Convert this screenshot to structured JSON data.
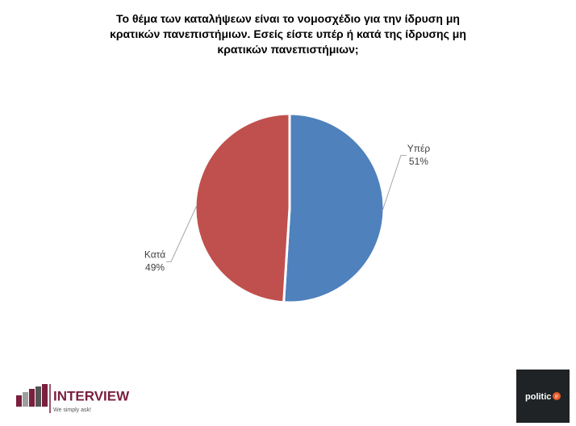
{
  "chart_data": {
    "type": "pie",
    "title": "Το θέμα των καταλήψεων είναι το νομοσχέδιο για την ίδρυση μη κρατικών πανεπιστήμιων. Εσείς είστε υπέρ ή κατά της ίδρυσης μη κρατικών πανεπιστήμιων;",
    "categories": [
      "Υπέρ",
      "Κατά"
    ],
    "values": [
      51,
      49
    ],
    "value_labels": [
      "51%",
      "49%"
    ],
    "colors": [
      "#4f81bd",
      "#c0504d"
    ]
  },
  "logos": {
    "interview": {
      "name": "INTERVIEW",
      "tagline": "We simply ask!"
    },
    "politic": {
      "name": "politic",
      "suffix": "gr"
    }
  }
}
